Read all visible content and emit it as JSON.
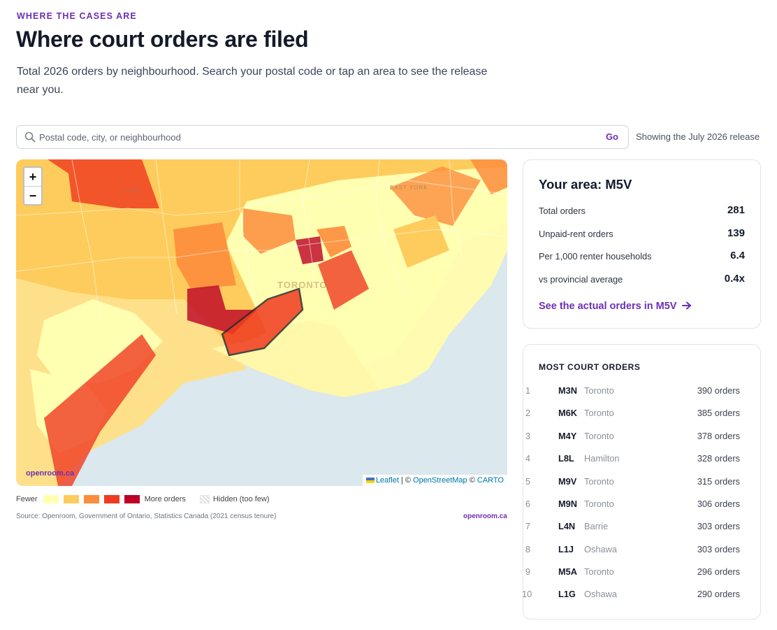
{
  "header": {
    "eyebrow": "WHERE THE CASES ARE",
    "title": "Where court orders are filed",
    "subtitle": "Total 2026 orders by neighbourhood. Search your postal code or tap an area to see the release near you."
  },
  "search": {
    "placeholder": "Postal code, city, or neighbourhood",
    "button_label": "Go",
    "release_note": "Showing the July 2026 release"
  },
  "map": {
    "zoom_in": "+",
    "zoom_out": "−",
    "labels": {
      "york": "YORK",
      "east_york": "EAST YORK",
      "toronto": "TORONTO"
    },
    "watermark": "openroom.ca",
    "attribution": {
      "leaflet": "Leaflet",
      "sep1": " | © ",
      "osm": "OpenStreetMap",
      "sep2": " © ",
      "carto": "CARTO"
    },
    "colors": {
      "level1": "#ffffb2",
      "level2": "#fecc5c",
      "level3": "#fd8d3c",
      "level4": "#f03b20",
      "level5": "#bd0026",
      "water": "#dbe8ed"
    }
  },
  "legend": {
    "fewer": "Fewer",
    "more": "More orders",
    "hidden": "Hidden (too few)"
  },
  "source": {
    "text": "Source: Openroom, Government of Ontario, Statistics Canada (2021 census tenure)",
    "link": "openroom.ca"
  },
  "area": {
    "title": "Your area: M5V",
    "stats": [
      {
        "label": "Total orders",
        "value": "281"
      },
      {
        "label": "Unpaid-rent orders",
        "value": "139"
      },
      {
        "label": "Per 1,000 renter households",
        "value": "6.4"
      },
      {
        "label": "vs provincial average",
        "value": "0.4x"
      }
    ],
    "link": "See the actual orders in M5V",
    "accent": "#6b2fb3"
  },
  "ranking": {
    "title": "MOST COURT ORDERS",
    "rows": [
      {
        "rank": "1",
        "code": "M3N",
        "city": "Toronto",
        "count": "390 orders"
      },
      {
        "rank": "2",
        "code": "M6K",
        "city": "Toronto",
        "count": "385 orders"
      },
      {
        "rank": "3",
        "code": "M4Y",
        "city": "Toronto",
        "count": "378 orders"
      },
      {
        "rank": "4",
        "code": "L8L",
        "city": "Hamilton",
        "count": "328 orders"
      },
      {
        "rank": "5",
        "code": "M9V",
        "city": "Toronto",
        "count": "315 orders"
      },
      {
        "rank": "6",
        "code": "M9N",
        "city": "Toronto",
        "count": "306 orders"
      },
      {
        "rank": "7",
        "code": "L4N",
        "city": "Barrie",
        "count": "303 orders"
      },
      {
        "rank": "8",
        "code": "L1J",
        "city": "Oshawa",
        "count": "303 orders"
      },
      {
        "rank": "9",
        "code": "M5A",
        "city": "Toronto",
        "count": "296 orders"
      },
      {
        "rank": "10",
        "code": "L1G",
        "city": "Oshawa",
        "count": "290 orders"
      }
    ]
  }
}
